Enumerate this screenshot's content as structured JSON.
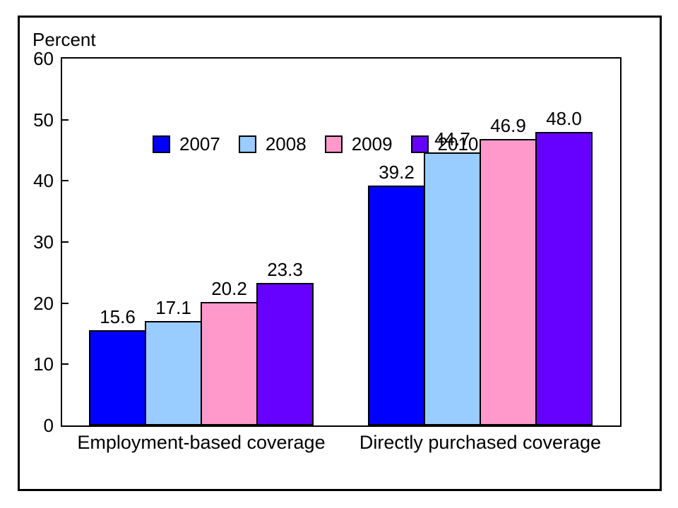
{
  "figure": {
    "background_color": "#ffffff",
    "border_color": "#000000"
  },
  "chart_data": {
    "type": "bar",
    "ylabel": "Percent",
    "categories": [
      "Employment-based coverage",
      "Directly purchased coverage"
    ],
    "series": [
      {
        "name": "2007",
        "color": "#0000ff",
        "values": [
          15.6,
          39.2
        ]
      },
      {
        "name": "2008",
        "color": "#99ccff",
        "values": [
          17.1,
          44.7
        ]
      },
      {
        "name": "2009",
        "color": "#ff99cc",
        "values": [
          20.2,
          46.9
        ]
      },
      {
        "name": "2010",
        "color": "#6600ff",
        "values": [
          23.3,
          48.0
        ]
      }
    ],
    "ylim": [
      0,
      60
    ],
    "yticks": [
      0,
      10,
      20,
      30,
      40,
      50,
      60
    ],
    "grid": false,
    "legend_position": "top-left-inside",
    "data_labels": true,
    "data_label_decimals": 1
  }
}
